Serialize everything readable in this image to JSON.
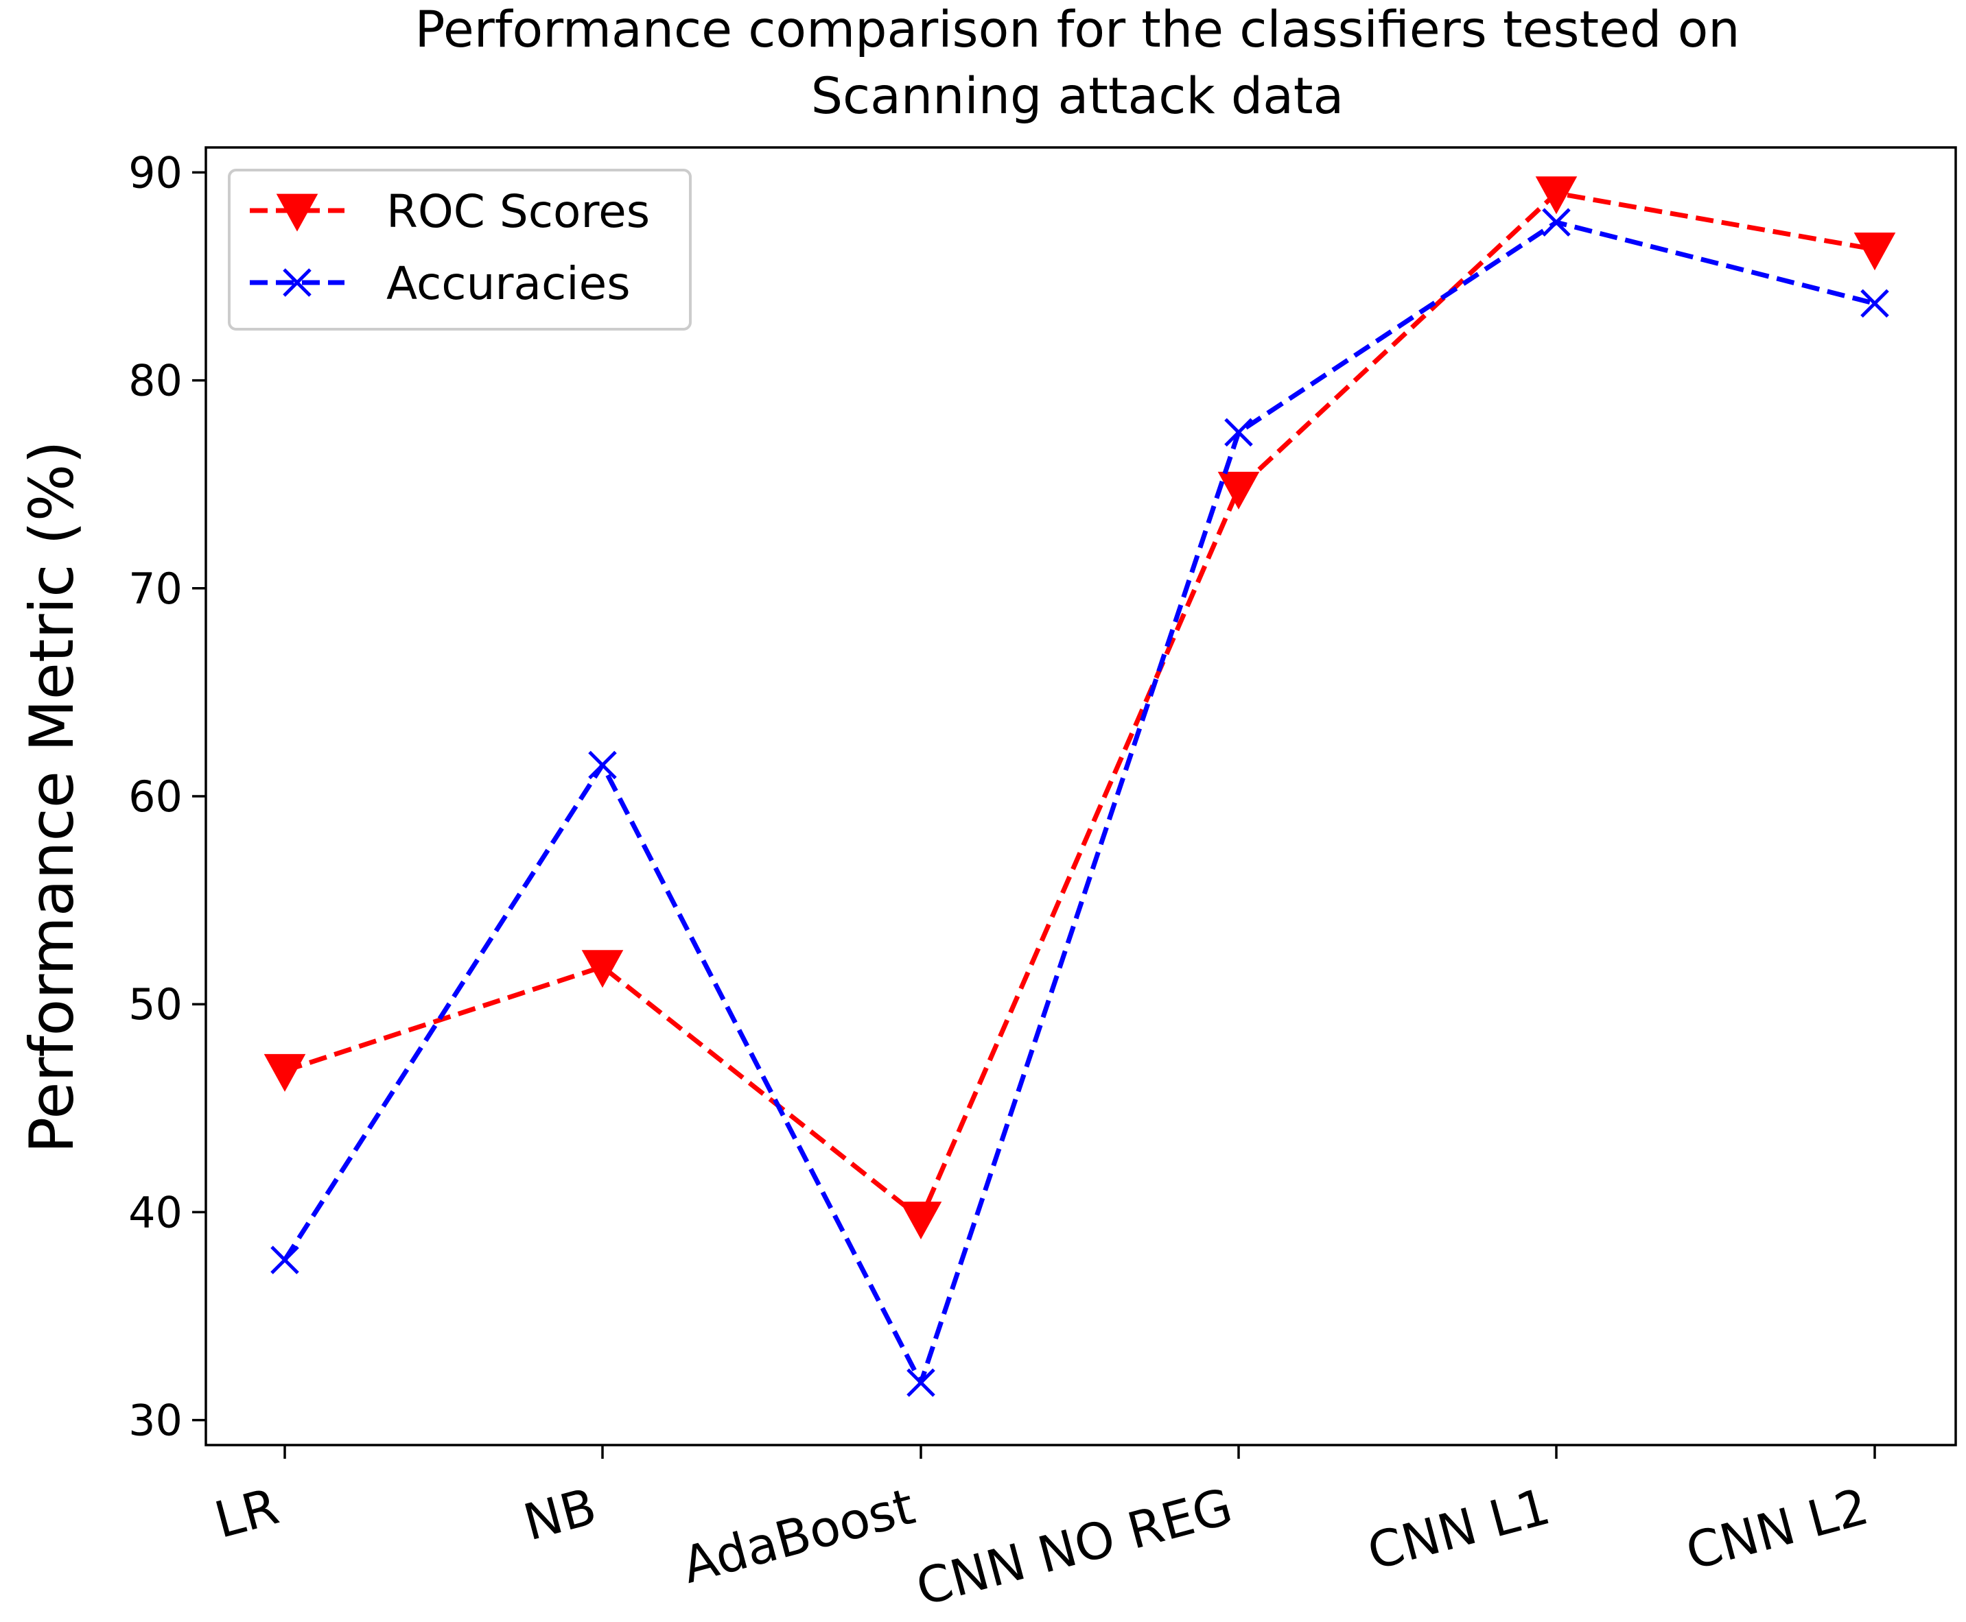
{
  "chart_data": {
    "type": "line",
    "title_lines": [
      "Performance comparison for the classifiers tested on",
      "Scanning attack data"
    ],
    "xlabel": "",
    "ylabel": "Performance Metric (%)",
    "categories": [
      "LR",
      "NB",
      "AdaBoost",
      "CNN NO REG",
      "CNN L1",
      "CNN L2"
    ],
    "ylim": [
      28.8,
      91.2
    ],
    "yticks": [
      30,
      40,
      50,
      60,
      70,
      80,
      90
    ],
    "grid": false,
    "legend_position": "upper-left",
    "series": [
      {
        "name": "ROC Scores",
        "color": "#ff0000",
        "marker": "triangle-down",
        "line_style": "dashed",
        "values": [
          46.8,
          51.8,
          39.7,
          74.8,
          89.0,
          86.3
        ]
      },
      {
        "name": "Accuracies",
        "color": "#0000ff",
        "marker": "x",
        "line_style": "dashed",
        "values": [
          37.7,
          61.5,
          31.8,
          77.5,
          87.6,
          83.7
        ]
      }
    ]
  }
}
